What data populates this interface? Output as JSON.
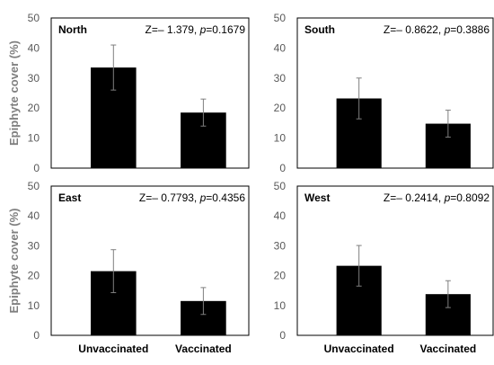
{
  "chart_data": [
    {
      "type": "bar",
      "title": "North",
      "annotation": {
        "prefix": "Z=",
        "z": "– 1.379",
        "sep": ", ",
        "pname": "p",
        "pval": "=0.1679"
      },
      "categories": [
        "Unvaccinated",
        "Vaccinated"
      ],
      "values": [
        33.5,
        18.5
      ],
      "error": [
        7.5,
        4.5
      ],
      "ylabel": "Epiphyte cover (%)",
      "ylim": [
        0,
        50
      ],
      "yticks": [
        0,
        10,
        20,
        30,
        40,
        50
      ],
      "show_xlabels": false,
      "show_ylabel": true,
      "bar_color": "#000000"
    },
    {
      "type": "bar",
      "title": "South",
      "annotation": {
        "prefix": "Z=",
        "z": "– 0.8622",
        "sep": ", ",
        "pname": "p",
        "pval": "=0.3886"
      },
      "categories": [
        "Unvaccinated",
        "Vaccinated"
      ],
      "values": [
        23.2,
        14.8
      ],
      "error": [
        6.8,
        4.5
      ],
      "ylabel": "",
      "ylim": [
        0,
        50
      ],
      "yticks": [
        0,
        10,
        20,
        30,
        40,
        50
      ],
      "show_xlabels": false,
      "show_ylabel": false,
      "bar_color": "#000000"
    },
    {
      "type": "bar",
      "title": "East",
      "annotation": {
        "prefix": "Z=",
        "z": "– 0.7793",
        "sep": ", ",
        "pname": "p",
        "pval": "=0.4356"
      },
      "categories": [
        "Unvaccinated",
        "Vaccinated"
      ],
      "values": [
        21.5,
        11.5
      ],
      "error": [
        7.2,
        4.5
      ],
      "ylabel": "Epiphyte cover (%)",
      "ylim": [
        0,
        50
      ],
      "yticks": [
        0,
        10,
        20,
        30,
        40,
        50
      ],
      "show_xlabels": true,
      "show_ylabel": true,
      "bar_color": "#000000"
    },
    {
      "type": "bar",
      "title": "West",
      "annotation": {
        "prefix": "Z=",
        "z": "– 0.2414",
        "sep": ", ",
        "pname": "p",
        "pval": "=0.8092"
      },
      "categories": [
        "Unvaccinated",
        "Vaccinated"
      ],
      "values": [
        23.3,
        13.8
      ],
      "error": [
        6.8,
        4.5
      ],
      "ylabel": "",
      "ylim": [
        0,
        50
      ],
      "yticks": [
        0,
        10,
        20,
        30,
        40,
        50
      ],
      "show_xlabels": true,
      "show_ylabel": false,
      "bar_color": "#000000"
    }
  ]
}
